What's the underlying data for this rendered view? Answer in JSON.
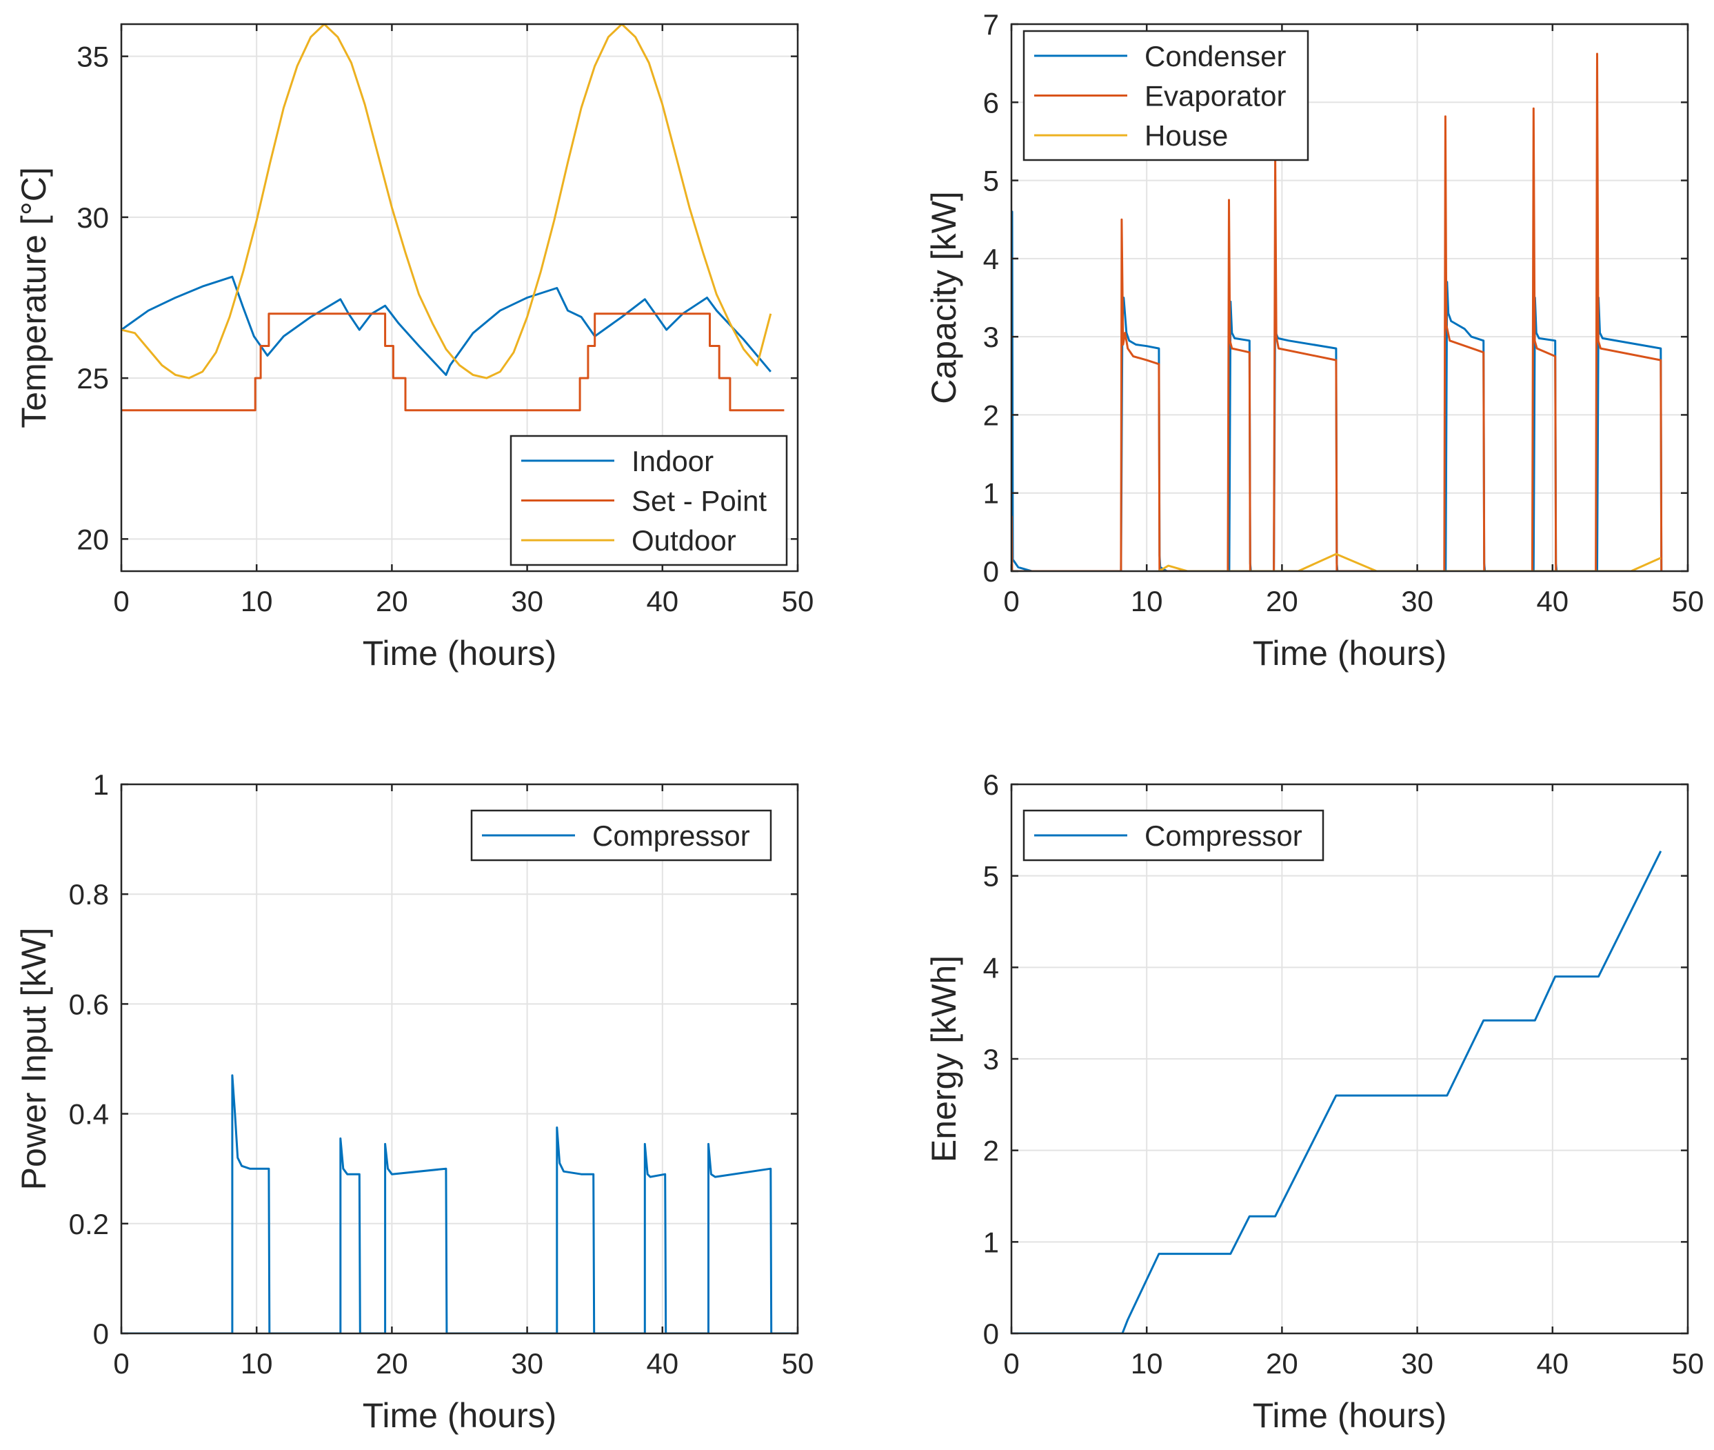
{
  "colors": {
    "blue": "#0072bd",
    "orange": "#d95319",
    "yellow": "#edb120",
    "grid": "#e3e3e3",
    "axis": "#262626"
  },
  "chart_data": [
    {
      "type": "line",
      "xlabel": "Time (hours)",
      "ylabel": "Temperature [°C]",
      "xlim": [
        0,
        50
      ],
      "ylim": [
        19,
        36
      ],
      "xticks": [
        0,
        10,
        20,
        30,
        40,
        50
      ],
      "yticks": [
        20,
        25,
        30,
        35
      ],
      "grid": true,
      "legend_position": "bottom-right",
      "series": [
        {
          "name": "Indoor",
          "color": "blue",
          "x": [
            0,
            2,
            4,
            6,
            8.2,
            9,
            9.8,
            10.8,
            12,
            14,
            16.2,
            16.8,
            17.6,
            18.5,
            19.5,
            20.5,
            22,
            24,
            24.3,
            26,
            28,
            30,
            32.2,
            33,
            34,
            35,
            37,
            38.7,
            39.3,
            40.3,
            41.5,
            43.3,
            44,
            46,
            48
          ],
          "y": [
            26.5,
            27.1,
            27.5,
            27.85,
            28.15,
            27.2,
            26.3,
            25.7,
            26.3,
            26.9,
            27.45,
            27,
            26.5,
            27,
            27.25,
            26.7,
            26,
            25.1,
            25.4,
            26.4,
            27.1,
            27.5,
            27.8,
            27.1,
            26.9,
            26.3,
            26.9,
            27.45,
            27.1,
            26.5,
            27,
            27.5,
            27.1,
            26.2,
            25.2
          ]
        },
        {
          "name": "Set - Point",
          "color": "orange",
          "x": [
            0,
            9.9,
            9.9,
            10.3,
            10.3,
            10.9,
            10.9,
            19.5,
            19.5,
            20.1,
            20.1,
            21,
            21,
            33.9,
            33.9,
            34.5,
            34.5,
            35,
            35,
            43.5,
            43.5,
            44.2,
            44.2,
            45,
            45,
            49
          ],
          "y": [
            24,
            24,
            25,
            25,
            26,
            26,
            27,
            27,
            26,
            26,
            25,
            25,
            24,
            24,
            25,
            25,
            26,
            26,
            27,
            27,
            26,
            26,
            25,
            25,
            24,
            24
          ]
        },
        {
          "name": "Outdoor",
          "color": "yellow",
          "x": [
            0,
            1,
            2,
            3,
            4,
            5,
            6,
            7,
            8,
            9,
            10,
            11,
            12,
            13,
            14,
            15,
            16,
            17,
            18,
            19,
            20,
            21,
            22,
            23,
            24,
            25,
            26,
            27,
            28,
            29,
            30,
            31,
            32,
            33,
            34,
            35,
            36,
            37,
            38,
            39,
            40,
            41,
            42,
            43,
            44,
            45,
            46,
            47,
            48
          ],
          "y": [
            26.5,
            26.4,
            25.9,
            25.4,
            25.1,
            25.0,
            25.2,
            25.8,
            26.9,
            28.3,
            29.9,
            31.7,
            33.4,
            34.7,
            35.6,
            36.0,
            35.6,
            34.8,
            33.5,
            31.9,
            30.3,
            28.9,
            27.6,
            26.7,
            25.9,
            25.4,
            25.1,
            25.0,
            25.2,
            25.8,
            26.9,
            28.3,
            29.9,
            31.7,
            33.4,
            34.7,
            35.6,
            36.0,
            35.6,
            34.8,
            33.5,
            31.9,
            30.3,
            28.9,
            27.6,
            26.7,
            25.9,
            25.4,
            27.0
          ]
        }
      ]
    },
    {
      "type": "line",
      "xlabel": "Time (hours)",
      "ylabel": "Capacity [kW]",
      "xlim": [
        0,
        50
      ],
      "ylim": [
        0,
        7
      ],
      "xticks": [
        0,
        10,
        20,
        30,
        40,
        50
      ],
      "yticks": [
        0,
        1,
        2,
        3,
        4,
        5,
        6,
        7
      ],
      "grid": true,
      "legend_position": "top-left",
      "series": [
        {
          "name": "Condenser",
          "color": "blue",
          "x": [
            0,
            0.05,
            0.1,
            0.5,
            1.5,
            3,
            8.1,
            8.2,
            8.3,
            8.5,
            8.7,
            9.2,
            10,
            10.9,
            10.95,
            11.0,
            11.5,
            16.1,
            16.2,
            16.3,
            16.5,
            17.6,
            17.65,
            17.7,
            19.4,
            19.5,
            19.55,
            19.7,
            20.5,
            24,
            24.05,
            24.1,
            32.1,
            32.2,
            32.3,
            32.5,
            33.5,
            34,
            34.9,
            34.95,
            35.0,
            38.6,
            38.7,
            38.8,
            39,
            40.2,
            40.25,
            40.3,
            43.3,
            43.4,
            43.5,
            43.7,
            48,
            48.05
          ],
          "y": [
            0,
            4.6,
            0.15,
            0.05,
            0,
            0,
            0,
            3.2,
            3.5,
            3.05,
            2.95,
            2.9,
            2.88,
            2.85,
            0.2,
            0.05,
            0,
            0,
            3.45,
            3.05,
            2.98,
            2.95,
            0.1,
            0,
            0,
            3.4,
            3.05,
            2.98,
            2.95,
            2.85,
            0.1,
            0,
            0,
            3.7,
            3.3,
            3.2,
            3.1,
            3.0,
            2.95,
            0.1,
            0,
            0,
            3.5,
            3.05,
            2.98,
            2.95,
            0.1,
            0,
            0,
            3.5,
            3.05,
            2.98,
            2.85,
            0
          ]
        },
        {
          "name": "Evaporator",
          "color": "orange",
          "x": [
            0,
            0.02,
            0.05,
            8.1,
            8.15,
            8.25,
            8.4,
            8.6,
            9,
            10,
            10.9,
            10.95,
            16.0,
            16.08,
            16.15,
            16.3,
            17.6,
            17.65,
            19.4,
            19.5,
            19.58,
            19.75,
            24,
            24.05,
            32.0,
            32.08,
            32.15,
            32.4,
            34.9,
            34.95,
            38.5,
            38.6,
            38.68,
            38.85,
            40.2,
            40.25,
            43.2,
            43.3,
            43.38,
            43.55,
            48,
            48.05
          ],
          "y": [
            0,
            0.7,
            0,
            0,
            4.5,
            2.9,
            3.05,
            2.85,
            2.75,
            2.7,
            2.65,
            0,
            0,
            4.75,
            2.95,
            2.85,
            2.8,
            0,
            0,
            5.3,
            3.0,
            2.85,
            2.7,
            0,
            0,
            5.82,
            3.15,
            2.95,
            2.8,
            0,
            0,
            5.92,
            2.95,
            2.85,
            2.75,
            0,
            0,
            6.62,
            2.95,
            2.85,
            2.7,
            0
          ]
        },
        {
          "name": "House",
          "color": "yellow",
          "x": [
            10.9,
            11.6,
            13,
            21.2,
            24,
            27,
            45.8,
            48
          ],
          "y": [
            0,
            0.07,
            0,
            0,
            0.22,
            0,
            0,
            0.17
          ]
        }
      ]
    },
    {
      "type": "line",
      "xlabel": "Time (hours)",
      "ylabel": "Power Input [kW]",
      "xlim": [
        0,
        50
      ],
      "ylim": [
        0,
        1
      ],
      "xticks": [
        0,
        10,
        20,
        30,
        40,
        50
      ],
      "yticks": [
        0,
        0.2,
        0.4,
        0.6,
        0.8,
        1
      ],
      "ytick_labels": [
        "0",
        "0.2",
        "0.4",
        "0.6",
        "0.8",
        "1"
      ],
      "grid": true,
      "legend_position": "top-right",
      "series": [
        {
          "name": "Compressor",
          "color": "blue",
          "x": [
            0,
            8.2,
            8.2,
            8.4,
            8.6,
            8.9,
            9.5,
            10.5,
            10.9,
            10.95,
            16.2,
            16.2,
            16.4,
            16.7,
            17.6,
            17.65,
            19.5,
            19.5,
            19.7,
            20,
            24,
            24.05,
            32.2,
            32.2,
            32.4,
            32.7,
            34,
            34.9,
            34.95,
            38.7,
            38.7,
            38.9,
            39.1,
            40.2,
            40.25,
            43.4,
            43.4,
            43.6,
            43.9,
            48,
            48.05,
            50
          ],
          "y": [
            0,
            0,
            0.47,
            0.4,
            0.32,
            0.305,
            0.3,
            0.3,
            0.3,
            0,
            0,
            0.355,
            0.3,
            0.29,
            0.29,
            0,
            0,
            0.345,
            0.3,
            0.29,
            0.3,
            0,
            0,
            0.375,
            0.31,
            0.295,
            0.29,
            0.29,
            0,
            0,
            0.345,
            0.29,
            0.285,
            0.29,
            0,
            0,
            0.345,
            0.29,
            0.285,
            0.3,
            0,
            0
          ]
        }
      ]
    },
    {
      "type": "line",
      "xlabel": "Time (hours)",
      "ylabel": "Energy [kWh]",
      "xlim": [
        0,
        50
      ],
      "ylim": [
        0,
        6
      ],
      "xticks": [
        0,
        10,
        20,
        30,
        40,
        50
      ],
      "yticks": [
        0,
        1,
        2,
        3,
        4,
        5,
        6
      ],
      "grid": true,
      "legend_position": "top-left",
      "series": [
        {
          "name": "Compressor",
          "color": "blue",
          "x": [
            0,
            8.2,
            8.6,
            10.9,
            16.2,
            17.6,
            19.5,
            24,
            32.2,
            34.9,
            38.7,
            40.2,
            43.4,
            48
          ],
          "y": [
            0,
            0,
            0.15,
            0.87,
            0.87,
            1.28,
            1.28,
            2.6,
            2.6,
            3.42,
            3.42,
            3.9,
            3.9,
            5.27
          ]
        }
      ]
    }
  ]
}
